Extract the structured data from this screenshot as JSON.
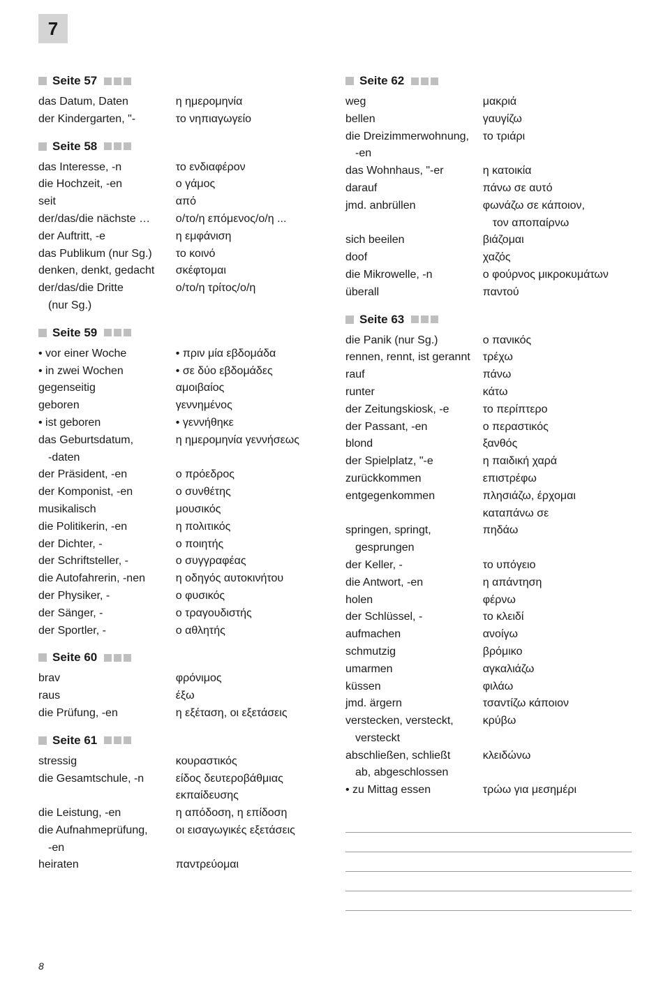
{
  "page_badge": "7",
  "footer": "8",
  "left": {
    "sections": [
      {
        "title": "Seite 57",
        "rows": [
          {
            "de": "das Datum, Daten",
            "gr": "η ημερομηνία"
          },
          {
            "de": "der Kindergarten, \"-",
            "gr": "το νηπιαγωγείο"
          }
        ]
      },
      {
        "title": "Seite 58",
        "rows": [
          {
            "de": "das Interesse, -n",
            "gr": "το ενδιαφέρον"
          },
          {
            "de": "die Hochzeit, -en",
            "gr": "ο γάμος"
          },
          {
            "de": "seit",
            "gr": "από"
          },
          {
            "de": "der/das/die nächste …",
            "gr": "ο/το/η επόμενος/ο/η ..."
          },
          {
            "de": "der Auftritt, -e",
            "gr": "η εμφάνιση"
          },
          {
            "de": "das Publikum (nur Sg.)",
            "gr": "το κοινό"
          },
          {
            "de": "denken, denkt, gedacht",
            "gr": "σκέφτομαι"
          },
          {
            "de": "der/das/die Dritte",
            "gr": "ο/το/η τρίτος/ο/η"
          },
          {
            "de": "  (nur Sg.)",
            "gr": ""
          }
        ]
      },
      {
        "title": "Seite 59",
        "rows": [
          {
            "de": "• vor einer Woche",
            "gr": "• πριν μία εβδομάδα"
          },
          {
            "de": "• in zwei Wochen",
            "gr": "• σε δύο εβδομάδες"
          },
          {
            "de": "gegenseitig",
            "gr": "αμοιβαίος"
          },
          {
            "de": "geboren",
            "gr": "γεννημένος"
          },
          {
            "de": "• ist geboren",
            "gr": "• γεννήθηκε"
          },
          {
            "de": "das Geburtsdatum,",
            "gr": "η ημερομηνία γεννήσεως"
          },
          {
            "de": "  -daten",
            "gr": ""
          },
          {
            "de": "der Präsident, -en",
            "gr": "ο πρόεδρος"
          },
          {
            "de": "der Komponist, -en",
            "gr": "ο συνθέτης"
          },
          {
            "de": "musikalisch",
            "gr": "μουσικός"
          },
          {
            "de": "die Politikerin, -en",
            "gr": "η πολιτικός"
          },
          {
            "de": "der Dichter, -",
            "gr": "ο ποιητής"
          },
          {
            "de": "der Schriftsteller, -",
            "gr": "ο συγγραφέας"
          },
          {
            "de": "die Autofahrerin, -nen",
            "gr": "η οδηγός αυτοκινήτου"
          },
          {
            "de": "der Physiker, -",
            "gr": "ο φυσικός"
          },
          {
            "de": "der Sänger, -",
            "gr": "ο τραγουδιστής"
          },
          {
            "de": "der Sportler, -",
            "gr": "ο αθλητής"
          }
        ]
      },
      {
        "title": "Seite 60",
        "rows": [
          {
            "de": "brav",
            "gr": "φρόνιμος"
          },
          {
            "de": "raus",
            "gr": "έξω"
          },
          {
            "de": "die Prüfung, -en",
            "gr": "η εξέταση, οι εξετάσεις"
          }
        ]
      },
      {
        "title": "Seite 61",
        "rows": [
          {
            "de": "stressig",
            "gr": "κουραστικός"
          },
          {
            "de": "die Gesamtschule, -n",
            "gr": "είδος δευτεροβάθμιας"
          },
          {
            "de": "",
            "gr": "εκπαίδευσης"
          },
          {
            "de": "die Leistung, -en",
            "gr": "η απόδοση, η επίδοση"
          },
          {
            "de": "die Aufnahmeprüfung,",
            "gr": "οι εισαγωγικές εξετάσεις"
          },
          {
            "de": "  -en",
            "gr": ""
          },
          {
            "de": "heiraten",
            "gr": "παντρεύομαι"
          }
        ]
      }
    ]
  },
  "right": {
    "sections": [
      {
        "title": "Seite 62",
        "rows": [
          {
            "de": "weg",
            "gr": "μακριά"
          },
          {
            "de": "bellen",
            "gr": "γαυγίζω"
          },
          {
            "de": "die Dreizimmerwohnung,",
            "gr": "το τριάρι"
          },
          {
            "de": "  -en",
            "gr": ""
          },
          {
            "de": "das Wohnhaus, \"-er",
            "gr": "η κατοικία"
          },
          {
            "de": "darauf",
            "gr": "πάνω σε αυτό"
          },
          {
            "de": "jmd. anbrüllen",
            "gr": "φωνάζω σε κάποιον,"
          },
          {
            "de": "",
            "gr": "   τον αποπαίρνω"
          },
          {
            "de": "sich beeilen",
            "gr": "βιάζομαι"
          },
          {
            "de": "doof",
            "gr": "χαζός"
          },
          {
            "de": "die Mikrowelle, -n",
            "gr": "ο φούρνος μικροκυμάτων"
          },
          {
            "de": "überall",
            "gr": "παντού"
          }
        ]
      },
      {
        "title": "Seite 63",
        "rows": [
          {
            "de": "die Panik (nur Sg.)",
            "gr": "ο πανικός"
          },
          {
            "de": "rennen, rennt, ist gerannt",
            "gr": "τρέχω"
          },
          {
            "de": "rauf",
            "gr": "πάνω"
          },
          {
            "de": "runter",
            "gr": "κάτω"
          },
          {
            "de": "der Zeitungskiosk, -e",
            "gr": "το περίπτερο"
          },
          {
            "de": "der Passant, -en",
            "gr": "ο περαστικός"
          },
          {
            "de": "blond",
            "gr": "ξανθός"
          },
          {
            "de": "der Spielplatz, \"-e",
            "gr": "η παιδική χαρά"
          },
          {
            "de": "zurückkommen",
            "gr": "επιστρέφω"
          },
          {
            "de": "entgegenkommen",
            "gr": "πλησιάζω, έρχομαι"
          },
          {
            "de": "",
            "gr": "καταπάνω σε"
          },
          {
            "de": "springen, springt,",
            "gr": "πηδάω"
          },
          {
            "de": "   gesprungen",
            "gr": ""
          },
          {
            "de": "der Keller, -",
            "gr": "το υπόγειο"
          },
          {
            "de": "die Antwort, -en",
            "gr": "η απάντηση"
          },
          {
            "de": "holen",
            "gr": "φέρνω"
          },
          {
            "de": "der Schlüssel, -",
            "gr": "το κλειδί"
          },
          {
            "de": "aufmachen",
            "gr": "ανοίγω"
          },
          {
            "de": "schmutzig",
            "gr": "βρόμικο"
          },
          {
            "de": "umarmen",
            "gr": "αγκαλιάζω"
          },
          {
            "de": "küssen",
            "gr": "φιλάω"
          },
          {
            "de": "jmd. ärgern",
            "gr": "τσαντίζω κάποιον"
          },
          {
            "de": "verstecken, versteckt,",
            "gr": "κρύβω"
          },
          {
            "de": "   versteckt",
            "gr": ""
          },
          {
            "de": "abschließen, schließt",
            "gr": "κλειδώνω"
          },
          {
            "de": "   ab, abgeschlossen",
            "gr": ""
          },
          {
            "de": "• zu Mittag essen",
            "gr": "τρώω για μεσημέρι"
          }
        ]
      }
    ],
    "note_lines": 5
  }
}
